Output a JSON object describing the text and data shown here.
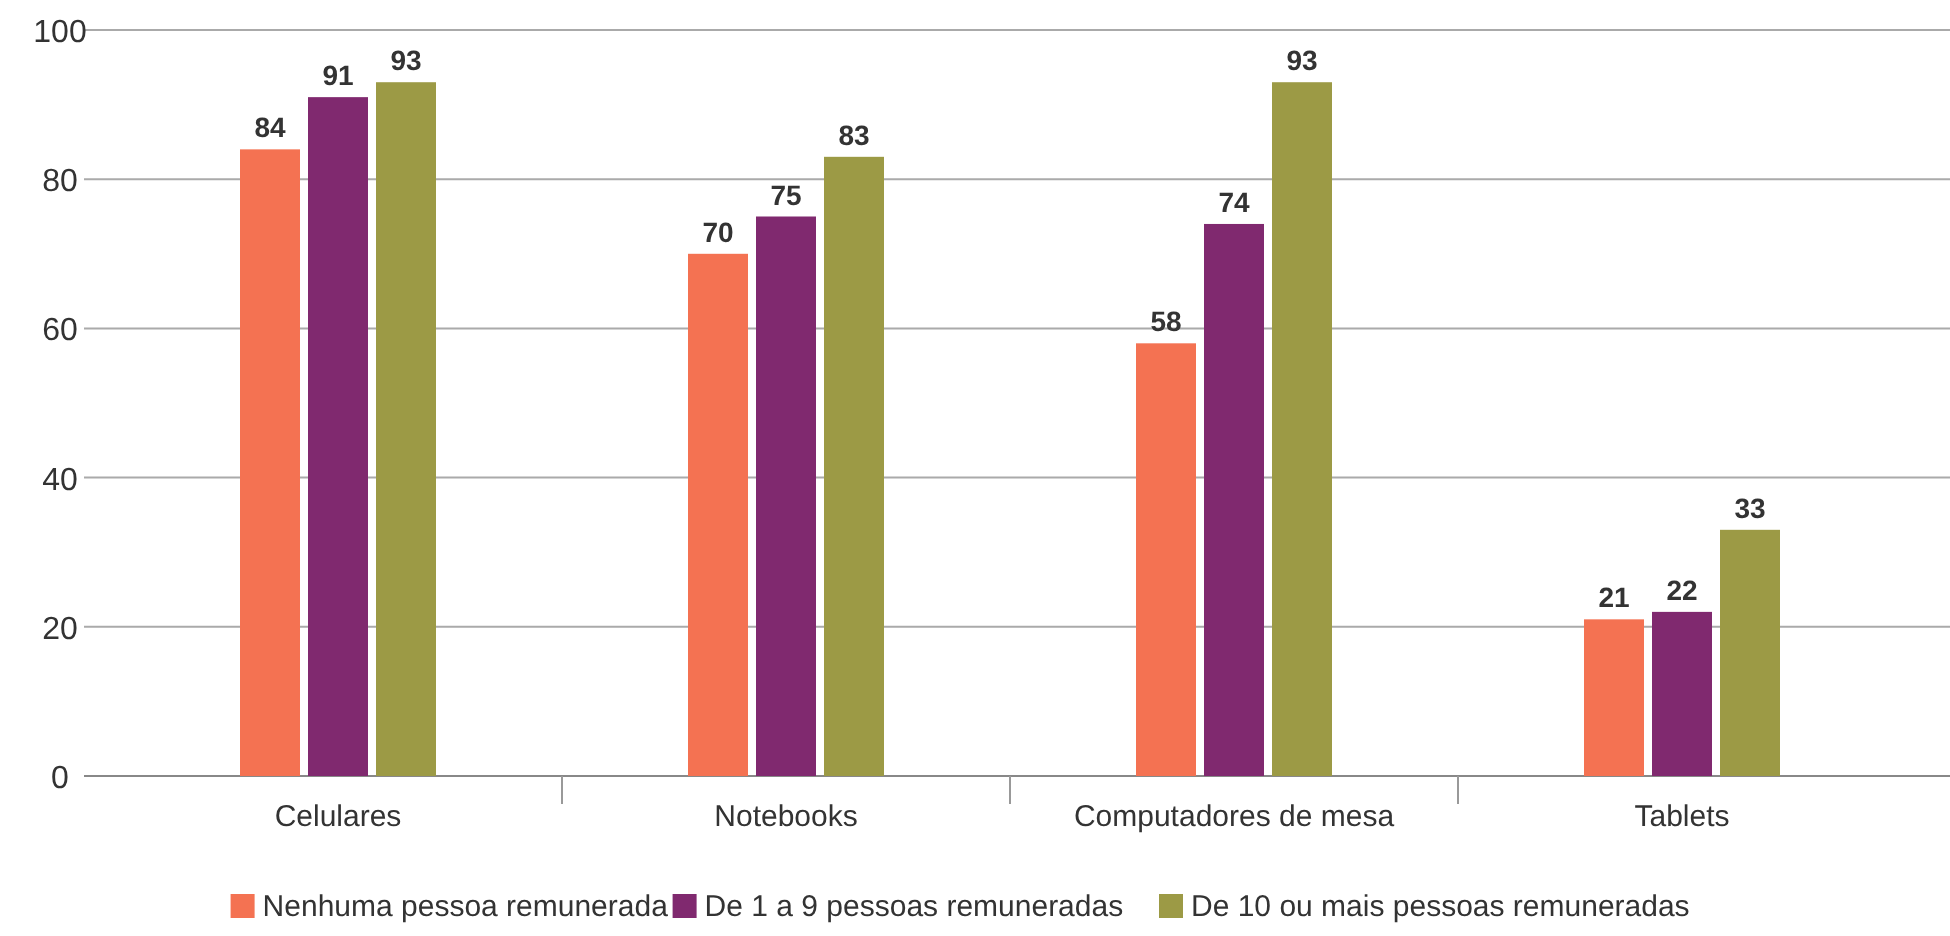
{
  "chart_data": {
    "type": "bar",
    "categories": [
      "Celulares",
      "Notebooks",
      "Computadores de mesa",
      "Tablets"
    ],
    "series": [
      {
        "name": "Nenhuma pessoa remunerada",
        "color": "#f47252",
        "values": [
          84,
          70,
          58,
          21
        ]
      },
      {
        "name": "De 1 a 9 pessoas remuneradas",
        "color": "#80296f",
        "values": [
          91,
          75,
          74,
          22
        ]
      },
      {
        "name": "De 10 ou mais pessoas remuneradas",
        "color": "#9c9a45",
        "values": [
          93,
          83,
          93,
          33
        ]
      }
    ],
    "ylim": [
      0,
      100
    ],
    "yticks": [
      0,
      20,
      40,
      60,
      80,
      100
    ],
    "grid": "y",
    "data_labels": true,
    "legend": "bottom"
  }
}
